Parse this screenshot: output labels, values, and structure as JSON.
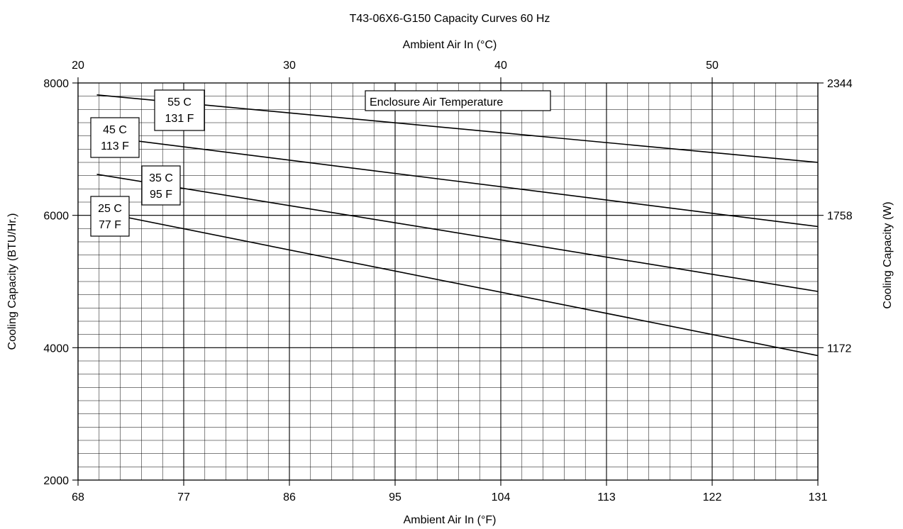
{
  "chart_data": {
    "type": "line",
    "title": "T43-06X6-G150 Capacity Curves 60 Hz",
    "xlabel": "Ambient Air In (°F)",
    "ylabel": "Cooling Capacity (BTU/Hr.)",
    "x2label": "Ambient Air In (°C)",
    "y2label": "Cooling Capacity (W)",
    "xlim": [
      68,
      131
    ],
    "ylim": [
      2000,
      8000
    ],
    "x_ticks": [
      "68",
      "77",
      "86",
      "95",
      "104",
      "113",
      "122",
      "131"
    ],
    "y_ticks": [
      "2000",
      "4000",
      "6000",
      "8000"
    ],
    "x2_ticks": [
      "20",
      "30",
      "40",
      "50"
    ],
    "y2_ticks": [
      "1172",
      "1758",
      "2344"
    ],
    "grid": true,
    "legend_title": "Enclosure Air Temperature",
    "series": [
      {
        "name": "55 C 131 F",
        "label_lines": [
          "55 C",
          "131 F"
        ],
        "points": [
          [
            69.6,
            7820
          ],
          [
            131,
            6800
          ]
        ]
      },
      {
        "name": "45 C 113 F",
        "label_lines": [
          "45 C",
          "113 F"
        ],
        "points": [
          [
            69.6,
            7200
          ],
          [
            131,
            5830
          ]
        ]
      },
      {
        "name": "35 C 95 F",
        "label_lines": [
          "35 C",
          "95 F"
        ],
        "points": [
          [
            69.6,
            6620
          ],
          [
            131,
            4850
          ]
        ]
      },
      {
        "name": "25 C 77 F",
        "label_lines": [
          "25 C",
          "77 F"
        ],
        "points": [
          [
            69.6,
            6060
          ],
          [
            131,
            3880
          ]
        ]
      }
    ]
  }
}
